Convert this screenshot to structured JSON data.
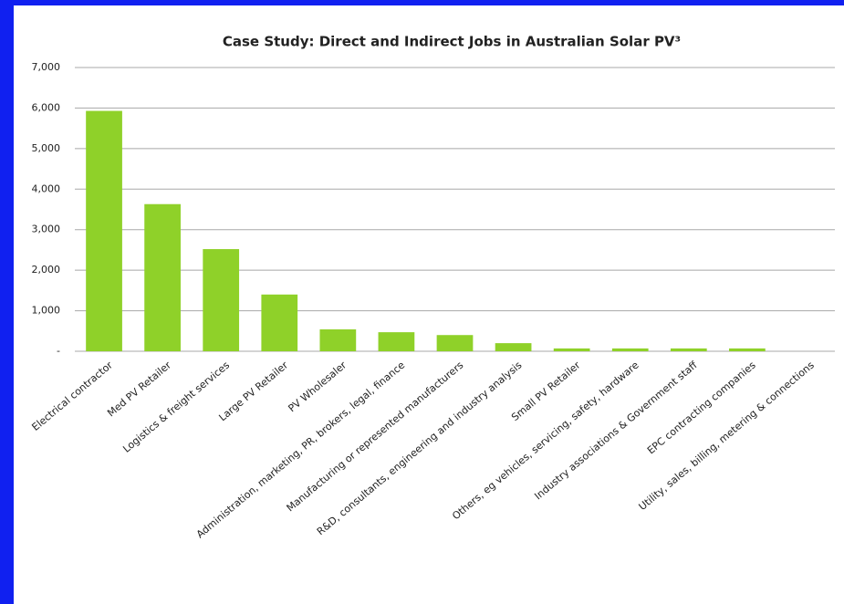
{
  "chart_data": {
    "type": "bar",
    "title": "Case Study: Direct and Indirect Jobs in Australian Solar PV³",
    "categories": [
      "Electrical contractor",
      "Med PV Retailer",
      "Logistics & freight services",
      "Large PV Retailer",
      "PV Wholesaler",
      "Administration, marketing, PR, brokers, legal, finance",
      "Manufacturing or represented manufacturers",
      "R&D, consultants, engineering and industry analysis",
      "Small PV Retailer",
      "Others, eg vehicles, servicing, safety, hardware",
      "Industry associations & Government staff",
      "EPC contracting companies",
      "Utility, sales, billing, metering & connections"
    ],
    "values": [
      5930,
      3630,
      2520,
      1400,
      540,
      470,
      400,
      200,
      70,
      70,
      70,
      70,
      0
    ],
    "color": "#8fd129",
    "ylim": [
      0,
      7000
    ],
    "yticks": [
      {
        "value": 0,
        "label": "-"
      },
      {
        "value": 1000,
        "label": "1,000"
      },
      {
        "value": 2000,
        "label": "2,000"
      },
      {
        "value": 3000,
        "label": "3,000"
      },
      {
        "value": 4000,
        "label": "4,000"
      },
      {
        "value": 5000,
        "label": "5,000"
      },
      {
        "value": 6000,
        "label": "6,000"
      },
      {
        "value": 7000,
        "label": "7,000"
      }
    ],
    "grid": true
  }
}
